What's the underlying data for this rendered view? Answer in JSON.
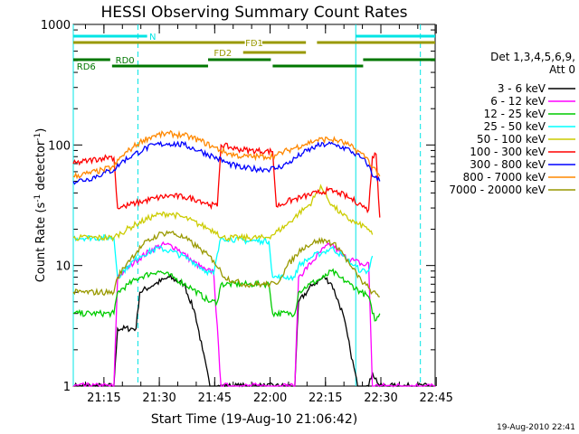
{
  "chart_data": {
    "type": "line",
    "title": "HESSI Observing Summary Count Rates",
    "xlabel": "Start Time (19-Aug-10 21:06:42)",
    "ylabel_main": "Count Rate (s",
    "ylabel_sup1": "-1",
    "ylabel_mid": " detector",
    "ylabel_sup2": "-1",
    "ylabel_end": ")",
    "y_scale": "log",
    "ylim": [
      1,
      1000
    ],
    "xlim_minutes": [
      0,
      98
    ],
    "y_ticks": [
      {
        "value": 1,
        "label": "1"
      },
      {
        "value": 10,
        "label": "10"
      },
      {
        "value": 100,
        "label": "100"
      },
      {
        "value": 1000,
        "label": "1000"
      }
    ],
    "x_ticks": [
      {
        "minute": 8.3,
        "label": "21:15"
      },
      {
        "minute": 23.3,
        "label": "21:30"
      },
      {
        "minute": 38.3,
        "label": "21:45"
      },
      {
        "minute": 53.3,
        "label": "22:00"
      },
      {
        "minute": 68.3,
        "label": "22:15"
      },
      {
        "minute": 83.3,
        "label": "22:30"
      },
      {
        "minute": 98.3,
        "label": "22:45"
      }
    ],
    "detector_info": [
      "Det 1,3,4,5,6,9,",
      "Att 0"
    ],
    "timestamp": "19-Aug-2010 22:41",
    "series": [
      {
        "name": "3 - 6 keV",
        "color": "#000000",
        "points": [
          [
            0,
            1
          ],
          [
            11,
            1
          ],
          [
            12,
            3
          ],
          [
            17,
            3
          ],
          [
            18,
            6
          ],
          [
            22,
            7
          ],
          [
            26,
            8
          ],
          [
            30,
            7
          ],
          [
            33,
            4
          ],
          [
            35,
            2
          ],
          [
            37,
            1
          ],
          [
            39,
            1
          ],
          [
            43,
            1
          ],
          [
            52,
            1
          ],
          [
            60,
            1
          ],
          [
            61,
            5
          ],
          [
            65,
            7
          ],
          [
            68,
            8
          ],
          [
            70,
            7
          ],
          [
            73,
            4
          ],
          [
            75,
            2
          ],
          [
            77,
            1
          ],
          [
            78,
            1
          ],
          [
            80,
            1
          ],
          [
            81,
            1.3
          ],
          [
            83,
            1
          ],
          [
            98,
            1
          ]
        ]
      },
      {
        "name": "6 - 12 keV",
        "color": "#ff00ff",
        "points": [
          [
            0,
            1
          ],
          [
            11,
            1
          ],
          [
            12,
            8
          ],
          [
            17,
            11
          ],
          [
            22,
            14
          ],
          [
            25,
            15
          ],
          [
            28,
            14
          ],
          [
            32,
            11
          ],
          [
            36,
            9
          ],
          [
            38,
            9
          ],
          [
            40,
            1
          ],
          [
            52,
            1
          ],
          [
            60,
            1
          ],
          [
            61,
            8
          ],
          [
            65,
            11
          ],
          [
            68,
            14
          ],
          [
            70,
            15
          ],
          [
            73,
            12
          ],
          [
            76,
            11
          ],
          [
            79,
            10
          ],
          [
            80,
            10.5
          ],
          [
            81,
            1
          ],
          [
            98,
            1
          ]
        ]
      },
      {
        "name": "12 - 25 keV",
        "color": "#00cc00",
        "points": [
          [
            0,
            4
          ],
          [
            11,
            4
          ],
          [
            12,
            6
          ],
          [
            15,
            7
          ],
          [
            18,
            8
          ],
          [
            23,
            9
          ],
          [
            27,
            8
          ],
          [
            32,
            6.5
          ],
          [
            37,
            5
          ],
          [
            39,
            5
          ],
          [
            40,
            7
          ],
          [
            47,
            7
          ],
          [
            51,
            7
          ],
          [
            53,
            7
          ],
          [
            54,
            4
          ],
          [
            60,
            4
          ],
          [
            61,
            6
          ],
          [
            64,
            7
          ],
          [
            68,
            8
          ],
          [
            70,
            9
          ],
          [
            72,
            8
          ],
          [
            75,
            7
          ],
          [
            78,
            6
          ],
          [
            80,
            5.5
          ],
          [
            81,
            4
          ],
          [
            82,
            3.5
          ],
          [
            83,
            4
          ]
        ]
      },
      {
        "name": "25 - 50 keV",
        "color": "#00ffff",
        "points": [
          [
            0,
            17
          ],
          [
            11,
            17
          ],
          [
            12,
            8
          ],
          [
            15,
            10
          ],
          [
            18,
            12
          ],
          [
            23,
            14
          ],
          [
            27,
            13
          ],
          [
            32,
            11
          ],
          [
            36,
            9
          ],
          [
            38,
            8.5
          ],
          [
            40,
            17
          ],
          [
            47,
            16
          ],
          [
            51,
            16
          ],
          [
            53,
            16
          ],
          [
            54,
            8
          ],
          [
            60,
            8
          ],
          [
            61,
            10
          ],
          [
            65,
            12
          ],
          [
            68,
            13
          ],
          [
            70,
            14
          ],
          [
            73,
            12
          ],
          [
            76,
            10
          ],
          [
            78,
            9
          ],
          [
            80,
            9
          ],
          [
            81,
            12
          ]
        ]
      },
      {
        "name": "50 - 100 keV",
        "color": "#cccc00",
        "points": [
          [
            0,
            17
          ],
          [
            11,
            17
          ],
          [
            12,
            18
          ],
          [
            17,
            22
          ],
          [
            22,
            26
          ],
          [
            26,
            27
          ],
          [
            30,
            25
          ],
          [
            34,
            22
          ],
          [
            37,
            20
          ],
          [
            39,
            19
          ],
          [
            40,
            17
          ],
          [
            52,
            17
          ],
          [
            54,
            18
          ],
          [
            58,
            22
          ],
          [
            61,
            27
          ],
          [
            64,
            32
          ],
          [
            66,
            40
          ],
          [
            67,
            46
          ],
          [
            68,
            40
          ],
          [
            70,
            32
          ],
          [
            73,
            26
          ],
          [
            77,
            22
          ],
          [
            79,
            21
          ],
          [
            80,
            20
          ],
          [
            81,
            18
          ]
        ]
      },
      {
        "name": "100 - 300 keV",
        "color": "#ff0000",
        "points": [
          [
            0,
            70
          ],
          [
            4,
            74
          ],
          [
            8,
            78
          ],
          [
            10,
            80
          ],
          [
            11,
            78
          ],
          [
            12,
            30
          ],
          [
            14,
            31
          ],
          [
            17,
            33
          ],
          [
            22,
            36
          ],
          [
            26,
            38
          ],
          [
            30,
            37
          ],
          [
            34,
            35
          ],
          [
            37,
            32
          ],
          [
            39,
            31
          ],
          [
            40,
            100
          ],
          [
            44,
            93
          ],
          [
            48,
            90
          ],
          [
            52,
            89
          ],
          [
            54,
            88
          ],
          [
            55,
            31
          ],
          [
            58,
            34
          ],
          [
            62,
            37
          ],
          [
            66,
            40
          ],
          [
            69,
            42
          ],
          [
            72,
            40
          ],
          [
            75,
            36
          ],
          [
            78,
            32
          ],
          [
            79,
            30
          ],
          [
            80,
            29
          ],
          [
            81,
            80
          ],
          [
            82,
            84
          ],
          [
            83,
            25
          ]
        ]
      },
      {
        "name": "300 - 800 keV",
        "color": "#0000ff",
        "points": [
          [
            0,
            50
          ],
          [
            4,
            52
          ],
          [
            8,
            58
          ],
          [
            11,
            62
          ],
          [
            13,
            72
          ],
          [
            16,
            82
          ],
          [
            19,
            92
          ],
          [
            22,
            100
          ],
          [
            26,
            103
          ],
          [
            30,
            100
          ],
          [
            34,
            90
          ],
          [
            38,
            80
          ],
          [
            42,
            70
          ],
          [
            46,
            64
          ],
          [
            52,
            63
          ],
          [
            55,
            64
          ],
          [
            58,
            70
          ],
          [
            62,
            85
          ],
          [
            66,
            98
          ],
          [
            69,
            102
          ],
          [
            72,
            98
          ],
          [
            75,
            90
          ],
          [
            78,
            78
          ],
          [
            80,
            68
          ],
          [
            81,
            55
          ],
          [
            82,
            55
          ],
          [
            83,
            50
          ]
        ]
      },
      {
        "name": "800 - 7000 keV",
        "color": "#ff8800",
        "points": [
          [
            0,
            55
          ],
          [
            4,
            58
          ],
          [
            8,
            62
          ],
          [
            11,
            66
          ],
          [
            13,
            80
          ],
          [
            16,
            95
          ],
          [
            19,
            110
          ],
          [
            22,
            120
          ],
          [
            26,
            124
          ],
          [
            30,
            120
          ],
          [
            34,
            110
          ],
          [
            38,
            96
          ],
          [
            42,
            85
          ],
          [
            46,
            80
          ],
          [
            52,
            80
          ],
          [
            55,
            82
          ],
          [
            58,
            90
          ],
          [
            62,
            100
          ],
          [
            66,
            110
          ],
          [
            69,
            112
          ],
          [
            72,
            108
          ],
          [
            75,
            98
          ],
          [
            78,
            85
          ],
          [
            80,
            75
          ],
          [
            81,
            65
          ],
          [
            82,
            62
          ],
          [
            83,
            55
          ]
        ]
      },
      {
        "name": "7000 - 20000 keV",
        "color": "#999900",
        "points": [
          [
            0,
            6
          ],
          [
            11,
            6
          ],
          [
            12,
            8
          ],
          [
            15,
            11
          ],
          [
            19,
            15
          ],
          [
            23,
            18
          ],
          [
            26,
            19
          ],
          [
            30,
            17
          ],
          [
            34,
            14
          ],
          [
            38,
            11
          ],
          [
            41,
            8
          ],
          [
            46,
            7
          ],
          [
            51,
            7
          ],
          [
            55,
            7
          ],
          [
            58,
            10
          ],
          [
            62,
            14
          ],
          [
            66,
            16
          ],
          [
            69,
            16
          ],
          [
            72,
            14
          ],
          [
            75,
            10
          ],
          [
            78,
            7.5
          ],
          [
            80,
            6.5
          ],
          [
            81,
            6
          ],
          [
            83,
            5.5
          ]
        ]
      }
    ],
    "state_bars": [
      {
        "label": "N",
        "color": "#00e5e5",
        "text_color": "#00e5e5",
        "label_minute": 21.5,
        "level": 0,
        "segments": [
          [
            0,
            20
          ],
          [
            76.5,
            98
          ]
        ]
      },
      {
        "label": "FD1",
        "color": "#999900",
        "text_color": "#999900",
        "label_minute": 49,
        "level": 1,
        "segments": [
          [
            0,
            63
          ],
          [
            66,
            98
          ]
        ]
      },
      {
        "label": "FD2",
        "color": "#999900",
        "text_color": "#999900",
        "label_minute": 40.5,
        "level": 2,
        "segments": [
          [
            46,
            63
          ]
        ]
      },
      {
        "label": "RD0",
        "color": "#007700",
        "text_color": "#007700",
        "label_minute": 14,
        "level": 3,
        "segments": [
          [
            0,
            10
          ],
          [
            36.5,
            53.5
          ],
          [
            78.5,
            98
          ]
        ]
      },
      {
        "label": "RD6",
        "color": "#007700",
        "text_color": "#007700",
        "label_minute": 3.5,
        "level": 4,
        "segments": [
          [
            10.5,
            36.5
          ],
          [
            54,
            78.5
          ]
        ]
      }
    ],
    "vertical_markers": [
      {
        "minute": 0,
        "style": "solid",
        "color": "#00e5e5"
      },
      {
        "minute": 17.5,
        "style": "dashed",
        "color": "#00e5e5"
      },
      {
        "minute": 76.5,
        "style": "solid",
        "color": "#00e5e5"
      },
      {
        "minute": 94,
        "style": "dashed",
        "color": "#00e5e5"
      }
    ]
  }
}
